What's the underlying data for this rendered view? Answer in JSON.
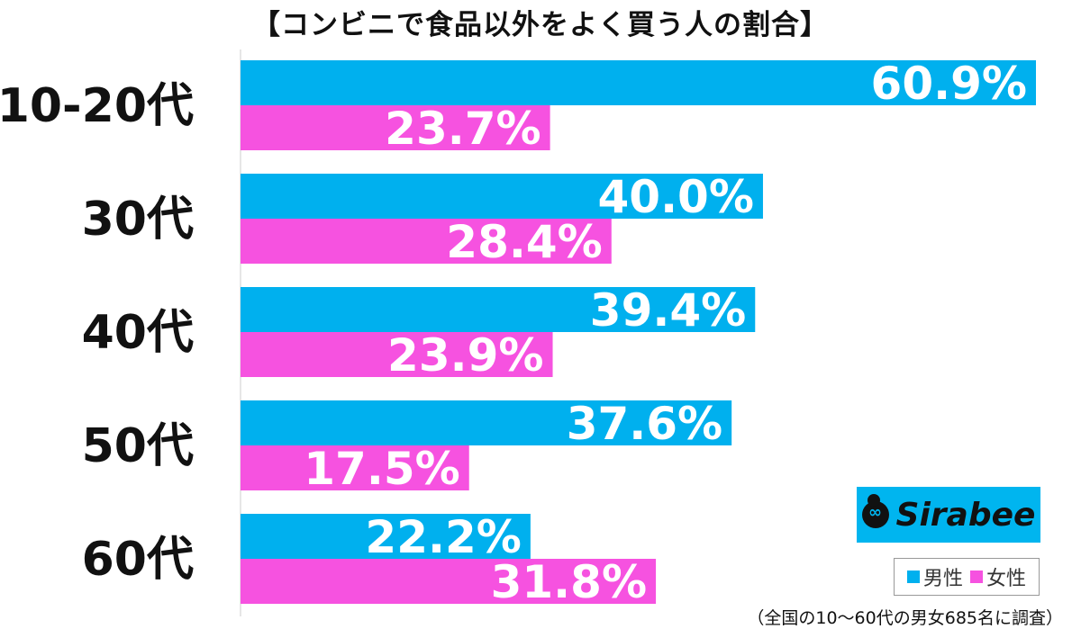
{
  "title": "【コンビニで食品以外をよく買う人の割合】",
  "chart_data": {
    "type": "bar",
    "orientation": "horizontal",
    "title": "【コンビニで食品以外をよく買う人の割合】",
    "categories": [
      "10-20代",
      "30代",
      "40代",
      "50代",
      "60代"
    ],
    "series": [
      {
        "name": "男性",
        "color": "#00b0ee",
        "values": [
          60.9,
          40.0,
          39.4,
          37.6,
          22.2
        ]
      },
      {
        "name": "女性",
        "color": "#f652e0",
        "values": [
          23.7,
          28.4,
          23.9,
          17.5,
          31.8
        ]
      }
    ],
    "value_suffix": "%",
    "xlim": [
      0,
      62
    ]
  },
  "legend": {
    "male": "男性",
    "female": "女性"
  },
  "logo": {
    "text": "Sirabee"
  },
  "note": "（全国の10〜60代の男女685名に調査）"
}
